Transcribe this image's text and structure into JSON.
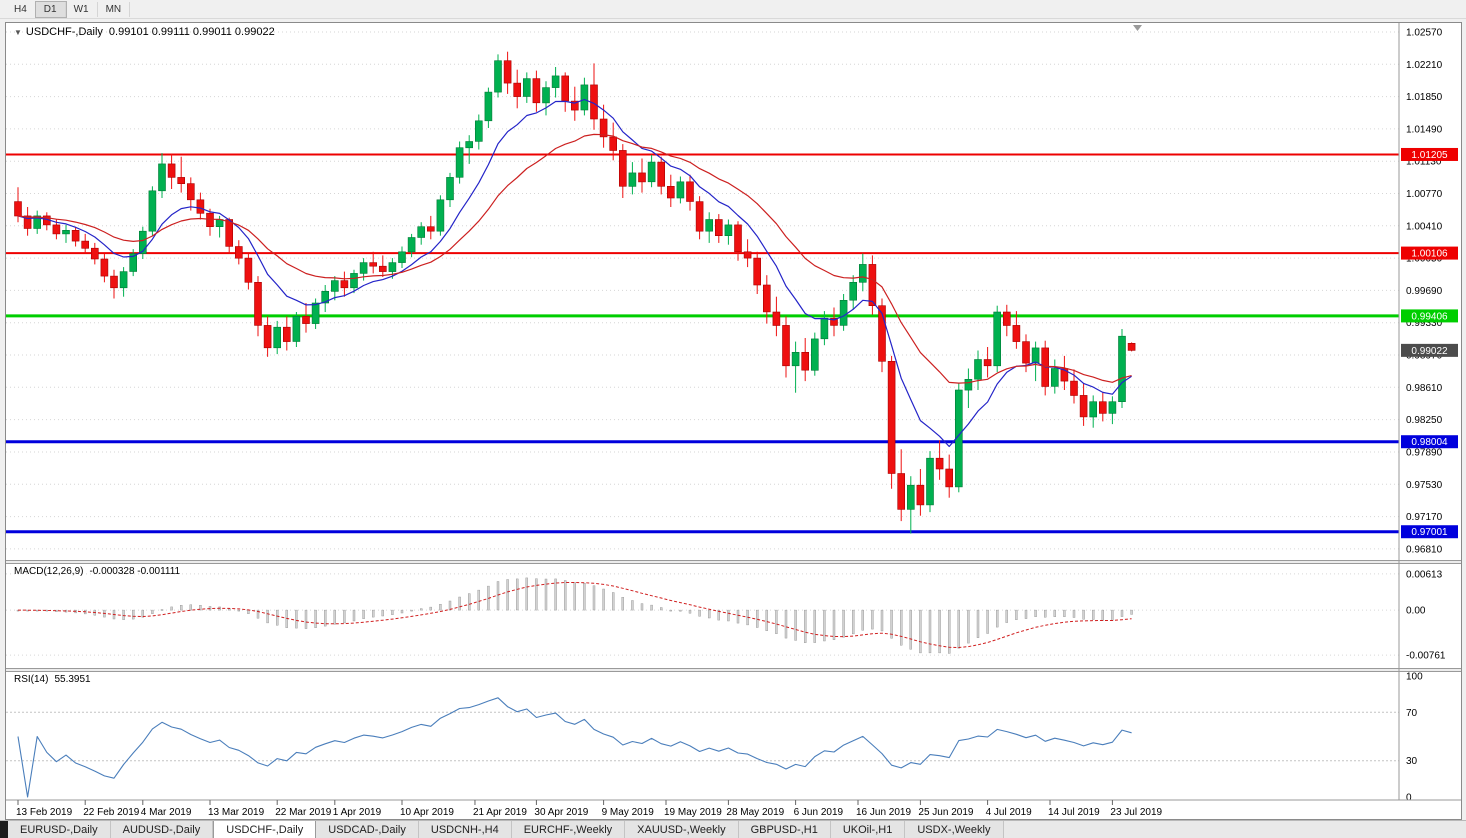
{
  "toolbar": {
    "timeframes": [
      {
        "label": "H4",
        "active": false
      },
      {
        "label": "D1",
        "active": true
      },
      {
        "label": "W1",
        "active": false
      },
      {
        "label": "MN",
        "active": false
      }
    ]
  },
  "header": {
    "collapse_icon": "▼",
    "title": "USDCHF-,Daily",
    "ohlc": "0.99101 0.99111 0.99011 0.99022"
  },
  "chart_data": {
    "type": "candlestick",
    "symbol": "USDCHF-",
    "period": "Daily",
    "current": {
      "open": 0.99101,
      "high": 0.99111,
      "low": 0.99011,
      "close": 0.99022
    },
    "current_price_label": "0.99022",
    "ylim": [
      0.96686,
      1.0267
    ],
    "price_axis_ticks": [
      "1.02570",
      "1.02210",
      "1.01850",
      "1.01490",
      "1.01130",
      "1.00770",
      "1.00410",
      "1.00050",
      "0.99690",
      "0.99330",
      "0.98970",
      "0.98610",
      "0.98250",
      "0.97890",
      "0.97530",
      "0.97170",
      "0.96810"
    ],
    "hlines": [
      {
        "price": 1.01205,
        "label": "1.01205",
        "color": "red"
      },
      {
        "price": 1.00106,
        "label": "1.00106",
        "color": "red"
      },
      {
        "price": 0.99406,
        "label": "0.99406",
        "color": "green"
      },
      {
        "price": 0.98004,
        "label": "0.98004",
        "color": "blue"
      },
      {
        "price": 0.97001,
        "label": "0.97001",
        "color": "blue"
      }
    ],
    "ma_fast": {
      "period": 9
    },
    "ma_slow": {
      "period": 21
    },
    "candles": [
      [
        1.0068,
        1.0084,
        1.0045,
        1.0052
      ],
      [
        1.0052,
        1.0062,
        1.003,
        1.0038
      ],
      [
        1.0038,
        1.0058,
        1.0032,
        1.0052
      ],
      [
        1.0052,
        1.0056,
        1.0036,
        1.0042
      ],
      [
        1.0042,
        1.0048,
        1.0026,
        1.0032
      ],
      [
        1.0032,
        1.0042,
        1.0022,
        1.0036
      ],
      [
        1.0036,
        1.004,
        1.0018,
        1.0024
      ],
      [
        1.0024,
        1.0032,
        1.001,
        1.0016
      ],
      [
        1.0016,
        1.0022,
        0.9998,
        1.0004
      ],
      [
        1.0004,
        1.001,
        0.9978,
        0.9985
      ],
      [
        0.9985,
        0.9992,
        0.996,
        0.9972
      ],
      [
        0.9972,
        0.9995,
        0.9962,
        0.999
      ],
      [
        0.999,
        1.0015,
        0.9985,
        1.001
      ],
      [
        1.001,
        1.004,
        1.0004,
        1.0035
      ],
      [
        1.0035,
        1.0085,
        1.003,
        1.008
      ],
      [
        1.008,
        1.0122,
        1.0072,
        1.011
      ],
      [
        1.011,
        1.0121,
        1.0082,
        1.0095
      ],
      [
        1.0095,
        1.0118,
        1.0078,
        1.0088
      ],
      [
        1.0088,
        1.0095,
        1.0058,
        1.007
      ],
      [
        1.007,
        1.0078,
        1.0048,
        1.0055
      ],
      [
        1.0055,
        1.006,
        1.003,
        1.004
      ],
      [
        1.004,
        1.0052,
        1.0028,
        1.0048
      ],
      [
        1.0048,
        1.005,
        1.001,
        1.0018
      ],
      [
        1.0018,
        1.0025,
        0.9998,
        1.0005
      ],
      [
        1.0005,
        1.001,
        0.997,
        0.9978
      ],
      [
        0.9978,
        0.9985,
        0.9918,
        0.993
      ],
      [
        0.993,
        0.994,
        0.9895,
        0.9905
      ],
      [
        0.9905,
        0.9935,
        0.9898,
        0.9928
      ],
      [
        0.9928,
        0.994,
        0.9902,
        0.9912
      ],
      [
        0.9912,
        0.9945,
        0.9906,
        0.994
      ],
      [
        0.994,
        0.9955,
        0.9922,
        0.9932
      ],
      [
        0.9932,
        0.996,
        0.9926,
        0.9955
      ],
      [
        0.9955,
        0.9975,
        0.9945,
        0.9968
      ],
      [
        0.9968,
        0.9985,
        0.9958,
        0.998
      ],
      [
        0.998,
        0.999,
        0.9962,
        0.9972
      ],
      [
        0.9972,
        0.9992,
        0.9966,
        0.9988
      ],
      [
        0.9988,
        1.0005,
        0.998,
        1.0
      ],
      [
        1.0,
        1.0012,
        0.9988,
        0.9996
      ],
      [
        0.9996,
        1.0008,
        0.9984,
        0.999
      ],
      [
        0.999,
        1.0005,
        0.9982,
        1.0
      ],
      [
        1.0,
        1.0018,
        0.9994,
        1.0012
      ],
      [
        1.0012,
        1.0032,
        1.0006,
        1.0028
      ],
      [
        1.0028,
        1.0045,
        1.002,
        1.004
      ],
      [
        1.004,
        1.0052,
        1.0026,
        1.0035
      ],
      [
        1.0035,
        1.0075,
        1.003,
        1.007
      ],
      [
        1.007,
        1.01,
        1.0062,
        1.0095
      ],
      [
        1.0095,
        1.0135,
        1.0088,
        1.0128
      ],
      [
        1.0128,
        1.0142,
        1.011,
        1.0135
      ],
      [
        1.0135,
        1.0165,
        1.0126,
        1.0158
      ],
      [
        1.0158,
        1.0195,
        1.015,
        1.019
      ],
      [
        1.019,
        1.0232,
        1.0184,
        1.0225
      ],
      [
        1.0225,
        1.0235,
        1.0188,
        1.02
      ],
      [
        1.02,
        1.0215,
        1.0172,
        1.0185
      ],
      [
        1.0185,
        1.0212,
        1.0178,
        1.0205
      ],
      [
        1.0205,
        1.0214,
        1.0168,
        1.0178
      ],
      [
        1.0178,
        1.0202,
        1.0164,
        1.0195
      ],
      [
        1.0195,
        1.0218,
        1.0184,
        1.0208
      ],
      [
        1.0208,
        1.0212,
        1.0168,
        1.018
      ],
      [
        1.018,
        1.0196,
        1.0158,
        1.017
      ],
      [
        1.017,
        1.0206,
        1.0164,
        1.0198
      ],
      [
        1.0198,
        1.0222,
        1.0148,
        1.016
      ],
      [
        1.016,
        1.0176,
        1.0128,
        1.014
      ],
      [
        1.014,
        1.0156,
        1.0114,
        1.0125
      ],
      [
        1.0125,
        1.0132,
        1.0072,
        1.0085
      ],
      [
        1.0085,
        1.0112,
        1.0076,
        1.01
      ],
      [
        1.01,
        1.0116,
        1.0078,
        1.009
      ],
      [
        1.009,
        1.012,
        1.0084,
        1.0112
      ],
      [
        1.0112,
        1.0118,
        1.0076,
        1.0085
      ],
      [
        1.0085,
        1.0098,
        1.0062,
        1.0072
      ],
      [
        1.0072,
        1.0096,
        1.0066,
        1.009
      ],
      [
        1.009,
        1.0098,
        1.0058,
        1.0068
      ],
      [
        1.0068,
        1.0074,
        1.0026,
        1.0035
      ],
      [
        1.0035,
        1.0056,
        1.0022,
        1.0048
      ],
      [
        1.0048,
        1.0054,
        1.0022,
        1.003
      ],
      [
        1.003,
        1.0048,
        1.002,
        1.0042
      ],
      [
        1.0042,
        1.0046,
        1.0002,
        1.0012
      ],
      [
        1.0012,
        1.0026,
        0.9995,
        1.0005
      ],
      [
        1.0005,
        1.0012,
        0.9965,
        0.9975
      ],
      [
        0.9975,
        0.9986,
        0.9932,
        0.9945
      ],
      [
        0.9945,
        0.9962,
        0.9918,
        0.993
      ],
      [
        0.993,
        0.994,
        0.9872,
        0.9885
      ],
      [
        0.9885,
        0.9912,
        0.9855,
        0.99
      ],
      [
        0.99,
        0.9916,
        0.9868,
        0.988
      ],
      [
        0.988,
        0.9922,
        0.9874,
        0.9915
      ],
      [
        0.9915,
        0.9946,
        0.9908,
        0.9938
      ],
      [
        0.9938,
        0.995,
        0.9918,
        0.993
      ],
      [
        0.993,
        0.9965,
        0.9924,
        0.9958
      ],
      [
        0.9958,
        0.9986,
        0.9948,
        0.9978
      ],
      [
        0.9978,
        1.001,
        0.9968,
        0.9998
      ],
      [
        0.9998,
        1.0008,
        0.9942,
        0.9952
      ],
      [
        0.9952,
        0.996,
        0.9878,
        0.989
      ],
      [
        0.989,
        0.9896,
        0.9748,
        0.9765
      ],
      [
        0.9765,
        0.9792,
        0.9712,
        0.9725
      ],
      [
        0.9725,
        0.9762,
        0.9698,
        0.9752
      ],
      [
        0.9752,
        0.977,
        0.9718,
        0.973
      ],
      [
        0.973,
        0.979,
        0.9722,
        0.9782
      ],
      [
        0.9782,
        0.9802,
        0.9758,
        0.977
      ],
      [
        0.977,
        0.9786,
        0.9738,
        0.975
      ],
      [
        0.975,
        0.9866,
        0.9744,
        0.9858
      ],
      [
        0.9858,
        0.9882,
        0.9838,
        0.987
      ],
      [
        0.987,
        0.9902,
        0.9858,
        0.9892
      ],
      [
        0.9892,
        0.9906,
        0.9872,
        0.9885
      ],
      [
        0.9885,
        0.9952,
        0.9878,
        0.9945
      ],
      [
        0.9945,
        0.9953,
        0.9918,
        0.993
      ],
      [
        0.993,
        0.9946,
        0.9904,
        0.9912
      ],
      [
        0.9912,
        0.992,
        0.9878,
        0.9888
      ],
      [
        0.9888,
        0.9912,
        0.9868,
        0.9905
      ],
      [
        0.9905,
        0.9913,
        0.9852,
        0.9862
      ],
      [
        0.9862,
        0.9892,
        0.9854,
        0.9882
      ],
      [
        0.9882,
        0.9896,
        0.9858,
        0.9868
      ],
      [
        0.9868,
        0.9881,
        0.9843,
        0.9852
      ],
      [
        0.9852,
        0.9866,
        0.9818,
        0.9828
      ],
      [
        0.9828,
        0.9852,
        0.9816,
        0.9845
      ],
      [
        0.9845,
        0.9856,
        0.9823,
        0.9832
      ],
      [
        0.9832,
        0.9851,
        0.982,
        0.9845
      ],
      [
        0.9845,
        0.9926,
        0.9838,
        0.9918
      ],
      [
        0.99101,
        0.99111,
        0.99011,
        0.99022
      ]
    ],
    "date_labels": [
      {
        "text": "13 Feb 2019",
        "i": 0
      },
      {
        "text": "22 Feb 2019",
        "i": 7
      },
      {
        "text": "4 Mar 2019",
        "i": 13
      },
      {
        "text": "13 Mar 2019",
        "i": 20
      },
      {
        "text": "22 Mar 2019",
        "i": 27
      },
      {
        "text": "1 Apr 2019",
        "i": 33
      },
      {
        "text": "10 Apr 2019",
        "i": 40
      },
      {
        "text": "21 Apr 2019",
        "i": 47.6
      },
      {
        "text": "30 Apr 2019",
        "i": 54
      },
      {
        "text": "9 May 2019",
        "i": 61
      },
      {
        "text": "19 May 2019",
        "i": 67.5
      },
      {
        "text": "28 May 2019",
        "i": 74
      },
      {
        "text": "6 Jun 2019",
        "i": 81
      },
      {
        "text": "16 Jun 2019",
        "i": 87.5
      },
      {
        "text": "25 Jun 2019",
        "i": 94
      },
      {
        "text": "4 Jul 2019",
        "i": 101
      },
      {
        "text": "14 Jul 2019",
        "i": 107.5
      },
      {
        "text": "23 Jul 2019",
        "i": 114
      }
    ],
    "macd": {
      "label": "MACD(12,26,9)",
      "values_text": "-0.000328 -0.001111",
      "fast": 12,
      "slow": 26,
      "signal_period": 9,
      "axis_ticks": [
        "0.00613",
        "0.00",
        "-0.00761"
      ],
      "axis_values": [
        0.00613,
        0,
        -0.00761
      ]
    },
    "rsi": {
      "label": "RSI(14)",
      "value": "55.3951",
      "period": 14,
      "axis_ticks": [
        "100",
        "70",
        "30",
        "0"
      ],
      "axis_values": [
        100,
        70,
        30,
        0
      ],
      "levels": [
        70,
        30
      ]
    },
    "colors": {
      "bull": "#00b050",
      "bull_edge": "#007a35",
      "bear": "#ee1010",
      "bear_edge": "#a80000",
      "ma_fast": "#2424c8",
      "ma_slow": "#cc2020",
      "macd_hist": "#d2d2d2",
      "macd_hist_edge": "#8f8f8f",
      "macd_signal": "#d02020",
      "rsi": "#4a7ebb",
      "hline_red": "#ee0000",
      "hline_green": "#00ce00",
      "hline_blue": "#0000dd",
      "badge_current": "#4c4c4c",
      "grid": "#d6d6d6"
    }
  },
  "bottom_tabs": {
    "items": [
      {
        "label": "EURUSD-,Daily",
        "active": false
      },
      {
        "label": "AUDUSD-,Daily",
        "active": false
      },
      {
        "label": "USDCHF-,Daily",
        "active": true
      },
      {
        "label": "USDCAD-,Daily",
        "active": false
      },
      {
        "label": "USDCNH-,H4",
        "active": false
      },
      {
        "label": "EURCHF-,Weekly",
        "active": false
      },
      {
        "label": "XAUUSD-,Weekly",
        "active": false
      },
      {
        "label": "GBPUSD-,H1",
        "active": false
      },
      {
        "label": "UKOil-,H1",
        "active": false
      },
      {
        "label": "USDX-,Weekly",
        "active": false
      }
    ]
  }
}
